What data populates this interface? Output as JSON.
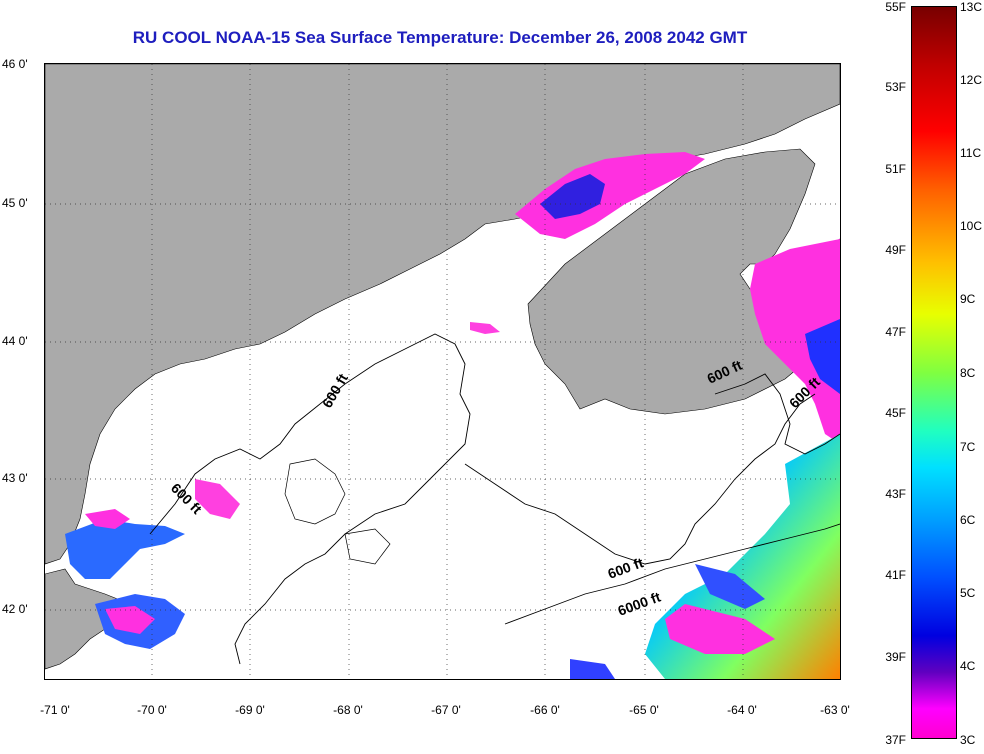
{
  "title": "RU COOL  NOAA-15  Sea Surface Temperature:  December 26, 2008 2042 GMT",
  "map": {
    "lat_labels": [
      "46 0'",
      "45 0'",
      "44 0'",
      "43 0'",
      "42 0'"
    ],
    "lon_labels": [
      "-71 0'",
      "-70 0'",
      "-69 0'",
      "-68 0'",
      "-67 0'",
      "-66 0'",
      "-65 0'",
      "-64 0'",
      "-63 0'"
    ],
    "contour_labels": [
      "600 ft",
      "600 ft",
      "600 ft",
      "600 ft",
      "600 ft",
      "6000 ft"
    ],
    "land_color": "#aaaaaa",
    "cloud_color": "#ffffff"
  },
  "colorbar": {
    "fahrenheit_labels": [
      "55F",
      "53F",
      "51F",
      "49F",
      "47F",
      "45F",
      "43F",
      "41F",
      "39F",
      "37F"
    ],
    "celsius_labels": [
      "13C",
      "12C",
      "11C",
      "10C",
      "9C",
      "8C",
      "7C",
      "6C",
      "5C",
      "4C",
      "3C"
    ],
    "range_f": [
      37,
      55
    ],
    "range_c": [
      3,
      13
    ]
  }
}
